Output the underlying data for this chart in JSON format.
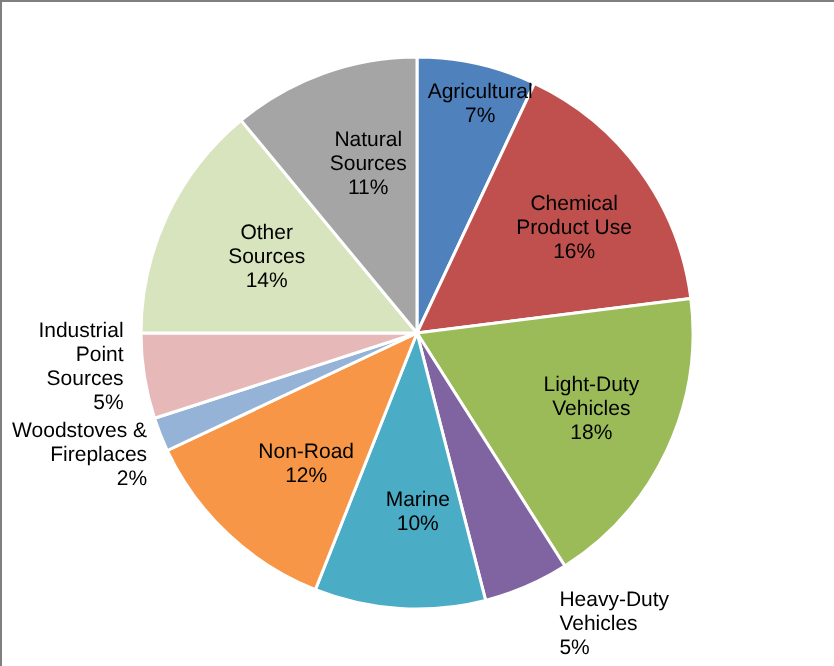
{
  "chart_data": {
    "type": "pie",
    "categories": [
      "Agricultural",
      "Chemical Product Use",
      "Light-Duty Vehicles",
      "Heavy-Duty Vehicles",
      "Marine",
      "Non-Road",
      "Woodstoves & Fireplaces",
      "Industrial Point Sources",
      "Other Sources",
      "Natural Sources"
    ],
    "values": [
      7,
      16,
      18,
      5,
      10,
      12,
      2,
      5,
      14,
      11
    ],
    "value_labels": [
      "7%",
      "16%",
      "18%",
      "5%",
      "10%",
      "12%",
      "2%",
      "5%",
      "14%",
      "11%"
    ],
    "colors": [
      "#4f81bd",
      "#c0504d",
      "#9bbb59",
      "#8064a2",
      "#4bacc6",
      "#f79646",
      "#95b3d7",
      "#e6b9b8",
      "#d7e4bd",
      "#a5a5a5"
    ]
  }
}
